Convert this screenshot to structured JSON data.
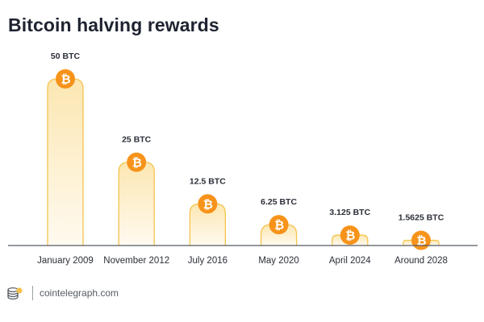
{
  "title": "Bitcoin halving rewards",
  "footer": {
    "site": "cointelegraph.com",
    "logo_icon": "cointelegraph-logo-icon"
  },
  "colors": {
    "bar_top": "#fce7b2",
    "bar_bottom": "#fffaf0",
    "bar_stroke": "#f5c24c",
    "coin": "#f7931a",
    "axis": "#555b63",
    "label": "#2b2f38"
  },
  "chart_data": {
    "type": "bar",
    "categories": [
      "January 2009",
      "November 2012",
      "July 2016",
      "May 2020",
      "April 2024",
      "Around 2028"
    ],
    "values": [
      50,
      25,
      12.5,
      6.25,
      3.125,
      1.5625
    ],
    "data_labels": [
      "50 BTC",
      "25 BTC",
      "12.5 BTC",
      "6.25 BTC",
      "3.125 BTC",
      "1.5625 BTC"
    ],
    "title": "Bitcoin halving rewards",
    "xlabel": "",
    "ylabel": "",
    "grid": false,
    "marker_icon": "bitcoin-icon"
  }
}
